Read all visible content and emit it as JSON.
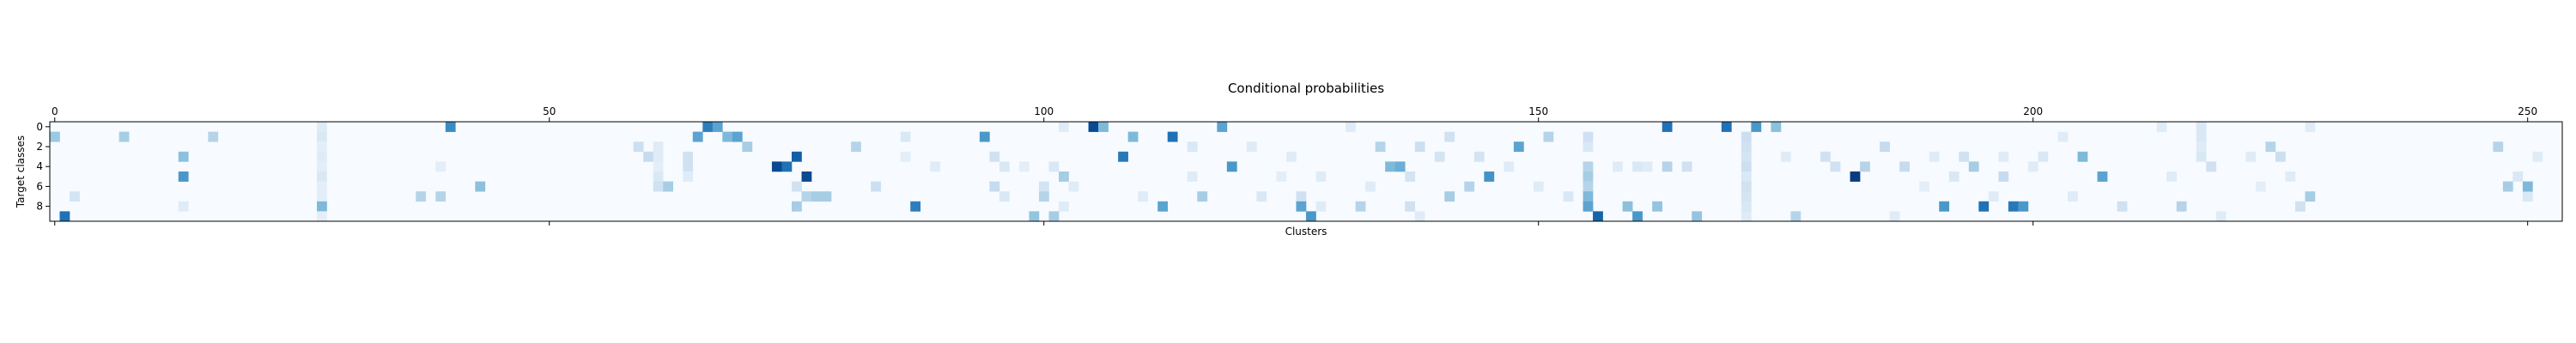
{
  "chart_data": {
    "type": "heatmap",
    "title": "Conditional probabilities",
    "xlabel": "Clusters",
    "ylabel": "Target classes",
    "n_cols": 254,
    "n_rows": 10,
    "x_ticks": [
      0,
      50,
      100,
      150,
      200,
      250
    ],
    "y_ticks": [
      0,
      2,
      4,
      6,
      8
    ],
    "x_tick_position": "top",
    "colormap": "Blues",
    "value_range": [
      0,
      1
    ],
    "cells": [
      [
        0,
        1,
        0.38
      ],
      [
        1,
        9,
        0.75
      ],
      [
        2,
        7,
        0.18
      ],
      [
        7,
        1,
        0.35
      ],
      [
        13,
        3,
        0.42
      ],
      [
        13,
        5,
        0.6
      ],
      [
        13,
        8,
        0.12
      ],
      [
        16,
        1,
        0.3
      ],
      [
        27,
        0,
        0.12
      ],
      [
        27,
        1,
        0.15
      ],
      [
        27,
        2,
        0.1
      ],
      [
        27,
        3,
        0.12
      ],
      [
        27,
        4,
        0.1
      ],
      [
        27,
        5,
        0.15
      ],
      [
        27,
        6,
        0.1
      ],
      [
        27,
        7,
        0.1
      ],
      [
        27,
        8,
        0.45
      ],
      [
        27,
        9,
        0.1
      ],
      [
        37,
        7,
        0.3
      ],
      [
        39,
        4,
        0.1
      ],
      [
        39,
        7,
        0.3
      ],
      [
        40,
        0,
        0.65
      ],
      [
        43,
        6,
        0.42
      ],
      [
        59,
        2,
        0.22
      ],
      [
        60,
        3,
        0.25
      ],
      [
        61,
        2,
        0.12
      ],
      [
        61,
        3,
        0.12
      ],
      [
        61,
        4,
        0.1
      ],
      [
        61,
        5,
        0.15
      ],
      [
        61,
        6,
        0.2
      ],
      [
        62,
        6,
        0.35
      ],
      [
        64,
        3,
        0.2
      ],
      [
        64,
        4,
        0.2
      ],
      [
        64,
        5,
        0.12
      ],
      [
        65,
        1,
        0.55
      ],
      [
        66,
        0,
        0.7
      ],
      [
        67,
        0,
        0.55
      ],
      [
        68,
        1,
        0.45
      ],
      [
        69,
        1,
        0.55
      ],
      [
        70,
        2,
        0.35
      ],
      [
        73,
        4,
        0.9
      ],
      [
        74,
        4,
        0.75
      ],
      [
        75,
        3,
        0.82
      ],
      [
        76,
        5,
        0.9
      ],
      [
        75,
        6,
        0.2
      ],
      [
        75,
        8,
        0.35
      ],
      [
        76,
        7,
        0.3
      ],
      [
        77,
        7,
        0.35
      ],
      [
        78,
        7,
        0.35
      ],
      [
        81,
        2,
        0.3
      ],
      [
        83,
        6,
        0.22
      ],
      [
        86,
        1,
        0.15
      ],
      [
        86,
        3,
        0.1
      ],
      [
        87,
        8,
        0.7
      ],
      [
        89,
        4,
        0.12
      ],
      [
        94,
        1,
        0.6
      ],
      [
        95,
        3,
        0.2
      ],
      [
        95,
        6,
        0.25
      ],
      [
        96,
        4,
        0.15
      ],
      [
        96,
        7,
        0.15
      ],
      [
        98,
        4,
        0.1
      ],
      [
        99,
        9,
        0.4
      ],
      [
        100,
        6,
        0.18
      ],
      [
        100,
        7,
        0.3
      ],
      [
        101,
        9,
        0.35
      ],
      [
        101,
        4,
        0.15
      ],
      [
        102,
        0,
        0.12
      ],
      [
        102,
        5,
        0.35
      ],
      [
        102,
        8,
        0.12
      ],
      [
        103,
        6,
        0.12
      ],
      [
        105,
        0,
        0.9
      ],
      [
        106,
        0,
        0.45
      ],
      [
        108,
        3,
        0.72
      ],
      [
        109,
        1,
        0.45
      ],
      [
        110,
        7,
        0.12
      ],
      [
        112,
        8,
        0.55
      ],
      [
        113,
        1,
        0.75
      ],
      [
        115,
        2,
        0.15
      ],
      [
        115,
        5,
        0.12
      ],
      [
        116,
        7,
        0.35
      ],
      [
        118,
        0,
        0.55
      ],
      [
        119,
        4,
        0.6
      ],
      [
        121,
        2,
        0.12
      ],
      [
        122,
        7,
        0.15
      ],
      [
        124,
        5,
        0.1
      ],
      [
        125,
        3,
        0.12
      ],
      [
        126,
        7,
        0.2
      ],
      [
        126,
        8,
        0.55
      ],
      [
        127,
        9,
        0.6
      ],
      [
        128,
        5,
        0.12
      ],
      [
        128,
        8,
        0.12
      ],
      [
        131,
        0,
        0.12
      ],
      [
        132,
        8,
        0.3
      ],
      [
        133,
        6,
        0.12
      ],
      [
        134,
        2,
        0.3
      ],
      [
        135,
        4,
        0.45
      ],
      [
        136,
        4,
        0.5
      ],
      [
        137,
        5,
        0.18
      ],
      [
        137,
        8,
        0.2
      ],
      [
        138,
        2,
        0.22
      ],
      [
        138,
        9,
        0.12
      ],
      [
        140,
        3,
        0.18
      ],
      [
        141,
        1,
        0.2
      ],
      [
        141,
        7,
        0.35
      ],
      [
        143,
        6,
        0.3
      ],
      [
        144,
        3,
        0.18
      ],
      [
        145,
        5,
        0.62
      ],
      [
        147,
        4,
        0.12
      ],
      [
        148,
        2,
        0.55
      ],
      [
        150,
        6,
        0.12
      ],
      [
        151,
        1,
        0.3
      ],
      [
        153,
        7,
        0.15
      ],
      [
        155,
        2,
        0.15
      ],
      [
        155,
        4,
        0.3
      ],
      [
        155,
        5,
        0.35
      ],
      [
        155,
        6,
        0.3
      ],
      [
        155,
        7,
        0.45
      ],
      [
        155,
        8,
        0.55
      ],
      [
        155,
        1,
        0.2
      ],
      [
        156,
        9,
        0.8
      ],
      [
        158,
        4,
        0.12
      ],
      [
        159,
        8,
        0.42
      ],
      [
        160,
        4,
        0.15
      ],
      [
        160,
        9,
        0.6
      ],
      [
        161,
        4,
        0.12
      ],
      [
        162,
        8,
        0.4
      ],
      [
        163,
        0,
        0.75
      ],
      [
        163,
        4,
        0.3
      ],
      [
        165,
        4,
        0.2
      ],
      [
        166,
        9,
        0.4
      ],
      [
        169,
        0,
        0.75
      ],
      [
        171,
        1,
        0.22
      ],
      [
        171,
        2,
        0.2
      ],
      [
        171,
        3,
        0.18
      ],
      [
        171,
        4,
        0.22
      ],
      [
        171,
        5,
        0.15
      ],
      [
        171,
        6,
        0.2
      ],
      [
        171,
        7,
        0.18
      ],
      [
        171,
        8,
        0.15
      ],
      [
        171,
        9,
        0.12
      ],
      [
        172,
        0,
        0.6
      ],
      [
        174,
        0,
        0.42
      ],
      [
        175,
        3,
        0.12
      ],
      [
        176,
        9,
        0.3
      ],
      [
        179,
        3,
        0.2
      ],
      [
        180,
        4,
        0.2
      ],
      [
        182,
        5,
        0.95
      ],
      [
        183,
        4,
        0.3
      ],
      [
        185,
        2,
        0.25
      ],
      [
        186,
        9,
        0.12
      ],
      [
        187,
        4,
        0.25
      ],
      [
        189,
        6,
        0.1
      ],
      [
        190,
        3,
        0.12
      ],
      [
        191,
        8,
        0.6
      ],
      [
        192,
        5,
        0.15
      ],
      [
        193,
        3,
        0.2
      ],
      [
        194,
        4,
        0.35
      ],
      [
        195,
        8,
        0.75
      ],
      [
        196,
        7,
        0.12
      ],
      [
        197,
        3,
        0.12
      ],
      [
        197,
        5,
        0.25
      ],
      [
        198,
        8,
        0.72
      ],
      [
        199,
        8,
        0.6
      ],
      [
        200,
        4,
        0.12
      ],
      [
        201,
        3,
        0.15
      ],
      [
        203,
        1,
        0.12
      ],
      [
        204,
        7,
        0.12
      ],
      [
        205,
        3,
        0.45
      ],
      [
        207,
        5,
        0.55
      ],
      [
        209,
        8,
        0.2
      ],
      [
        213,
        0,
        0.12
      ],
      [
        214,
        5,
        0.12
      ],
      [
        215,
        8,
        0.3
      ],
      [
        217,
        0,
        0.15
      ],
      [
        217,
        1,
        0.15
      ],
      [
        217,
        2,
        0.12
      ],
      [
        217,
        3,
        0.15
      ],
      [
        218,
        4,
        0.2
      ],
      [
        219,
        9,
        0.12
      ],
      [
        222,
        3,
        0.12
      ],
      [
        223,
        6,
        0.1
      ],
      [
        224,
        2,
        0.3
      ],
      [
        225,
        3,
        0.22
      ],
      [
        226,
        5,
        0.12
      ],
      [
        227,
        8,
        0.2
      ],
      [
        228,
        7,
        0.35
      ],
      [
        228,
        0,
        0.12
      ],
      [
        247,
        2,
        0.3
      ],
      [
        248,
        6,
        0.35
      ],
      [
        249,
        5,
        0.15
      ],
      [
        250,
        7,
        0.15
      ],
      [
        250,
        6,
        0.45
      ],
      [
        251,
        3,
        0.12
      ]
    ]
  }
}
